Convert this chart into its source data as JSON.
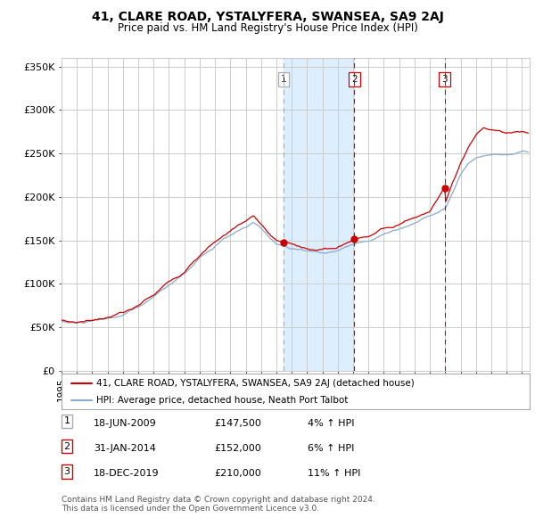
{
  "title": "41, CLARE ROAD, YSTALYFERA, SWANSEA, SA9 2AJ",
  "subtitle": "Price paid vs. HM Land Registry's House Price Index (HPI)",
  "legend_label_red": "41, CLARE ROAD, YSTALYFERA, SWANSEA, SA9 2AJ (detached house)",
  "legend_label_blue": "HPI: Average price, detached house, Neath Port Talbot",
  "footer1": "Contains HM Land Registry data © Crown copyright and database right 2024.",
  "footer2": "This data is licensed under the Open Government Licence v3.0.",
  "transactions": [
    {
      "num": 1,
      "date": "18-JUN-2009",
      "price": "£147,500",
      "pct": "4%",
      "dir": "↑",
      "year": 2009.46
    },
    {
      "num": 2,
      "date": "31-JAN-2014",
      "price": "£152,000",
      "pct": "6%",
      "dir": "↑",
      "year": 2014.08
    },
    {
      "num": 3,
      "date": "18-DEC-2019",
      "price": "£210,000",
      "pct": "11%",
      "dir": "↑",
      "year": 2019.96
    }
  ],
  "transaction_prices": [
    147500,
    152000,
    210000
  ],
  "xmin": 1995,
  "xmax": 2025.5,
  "ymin": 0,
  "ymax": 360000,
  "yticks": [
    0,
    50000,
    100000,
    150000,
    200000,
    250000,
    300000,
    350000
  ],
  "ytick_labels": [
    "£0",
    "£50K",
    "£100K",
    "£150K",
    "£200K",
    "£250K",
    "£300K",
    "£350K"
  ],
  "grid_color": "#cccccc",
  "bg_color": "#ffffff",
  "shade_color": "#ddeeff",
  "red_color": "#cc0000",
  "blue_color": "#88aacc",
  "vline1_color": "#aaaaaa",
  "vline23_color": "#cc0000"
}
